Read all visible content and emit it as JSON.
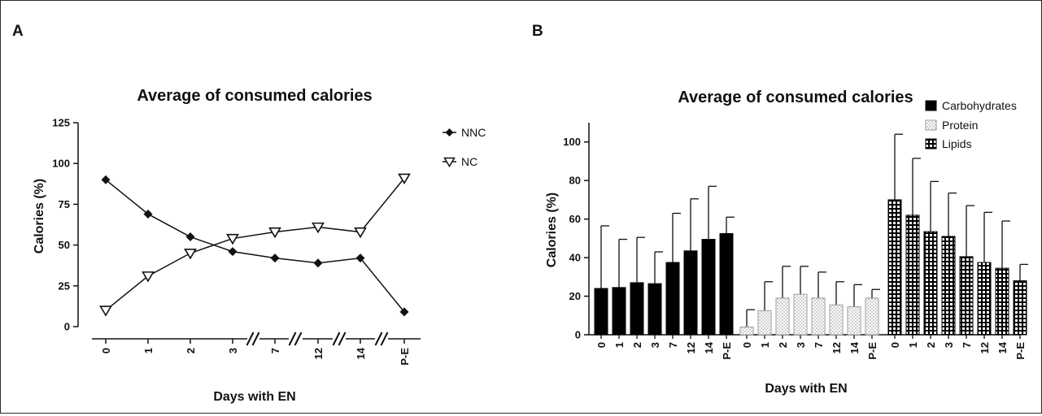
{
  "colors": {
    "line": "#111111",
    "bar_solid": "#000000",
    "bar_dot": "#bbbbbb",
    "background": "#ffffff"
  },
  "panel_a": {
    "label": "A"
  },
  "panel_b": {
    "label": "B"
  },
  "chart_data": [
    {
      "type": "line",
      "title": "Average of consumed calories",
      "xlabel": "Days with EN",
      "ylabel": "Calories (%)",
      "categories": [
        "0",
        "1",
        "2",
        "3",
        "7",
        "12",
        "14",
        "P-E"
      ],
      "axis_breaks_after": [
        "3",
        "7",
        "12",
        "14"
      ],
      "yticks": [
        "0",
        "25",
        "50",
        "75",
        "100",
        "125"
      ],
      "ylim": [
        0,
        125
      ],
      "legend_position": "right",
      "series": [
        {
          "name": "NNC",
          "marker": "filled-diamond",
          "values": [
            90,
            69,
            55,
            46,
            42,
            39,
            42,
            9
          ]
        },
        {
          "name": "NC",
          "marker": "open-triangle-down",
          "values": [
            10,
            31,
            45,
            54,
            58,
            61,
            58,
            91
          ]
        }
      ]
    },
    {
      "type": "bar",
      "title": "Average of consumed calories",
      "xlabel": "Days with EN",
      "ylabel": "Calories (%)",
      "categories": [
        "0",
        "1",
        "2",
        "3",
        "7",
        "12",
        "14",
        "P-E"
      ],
      "yticks": [
        "0",
        "20",
        "40",
        "60",
        "80",
        "100"
      ],
      "ylim": [
        0,
        110
      ],
      "error_bars": "mean + SD (upper only)",
      "legend_position": "top-right",
      "series": [
        {
          "name": "Carbohydrates",
          "pattern": "solid",
          "values": [
            24,
            24.5,
            27,
            26.5,
            37.5,
            43.5,
            49.5,
            52.5
          ],
          "errors": [
            32.5,
            25,
            23.5,
            16.5,
            25.5,
            27,
            27.5,
            8.5
          ]
        },
        {
          "name": "Protein",
          "pattern": "dotted",
          "values": [
            4,
            12.5,
            19,
            21,
            19,
            15.5,
            14.5,
            19
          ],
          "errors": [
            9,
            15,
            16.5,
            14.5,
            13.5,
            12,
            11.5,
            4.5
          ]
        },
        {
          "name": "Lipids",
          "pattern": "grid",
          "values": [
            70,
            62,
            53.5,
            51,
            40.5,
            37.5,
            34.5,
            28
          ],
          "errors": [
            34,
            29.5,
            26,
            22.5,
            26.5,
            26,
            24.5,
            8.5
          ]
        }
      ]
    }
  ]
}
